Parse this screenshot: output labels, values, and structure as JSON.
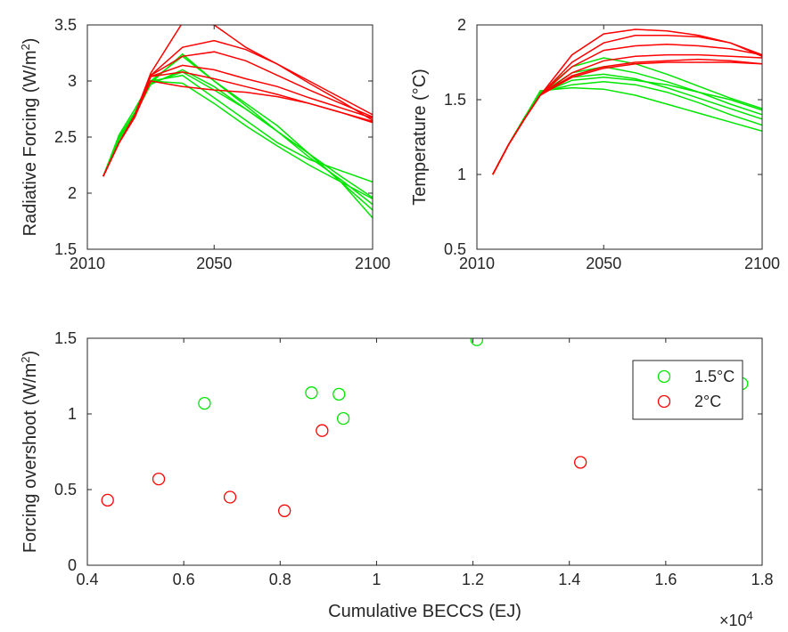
{
  "chart_data": [
    {
      "type": "line",
      "title": "",
      "xlabel": "",
      "ylabel": "Radiative Forcing (W/m²)",
      "ylabel_main": "Radiative Forcing (W/m",
      "ylabel_sup": "2",
      "ylabel_tail": ")",
      "xlim": [
        2010,
        2100
      ],
      "ylim": [
        1.5,
        3.5
      ],
      "xticks": [
        2010,
        2050,
        2100
      ],
      "xtick_labels": [
        "2010",
        "2050",
        "2100"
      ],
      "yticks": [
        1.5,
        2,
        2.5,
        3,
        3.5
      ],
      "ytick_labels": [
        "1.5",
        "2",
        "2.5",
        "3",
        "3.5"
      ],
      "colors": {
        "green": "#00e600",
        "red": "#ff0000"
      },
      "series": [
        {
          "group": "green",
          "x": [
            2015,
            2020,
            2025,
            2030,
            2040,
            2050,
            2060,
            2070,
            2080,
            2090,
            2100
          ],
          "y": [
            2.15,
            2.52,
            2.75,
            3.0,
            3.05,
            2.85,
            2.65,
            2.45,
            2.3,
            2.2,
            2.1
          ]
        },
        {
          "group": "green",
          "x": [
            2015,
            2020,
            2025,
            2030,
            2040,
            2050,
            2060,
            2070,
            2080,
            2090,
            2100
          ],
          "y": [
            2.15,
            2.48,
            2.7,
            2.97,
            3.1,
            2.95,
            2.75,
            2.55,
            2.35,
            2.1,
            1.78
          ]
        },
        {
          "group": "green",
          "x": [
            2015,
            2020,
            2025,
            2030,
            2040,
            2050,
            2060,
            2070,
            2080,
            2090,
            2100
          ],
          "y": [
            2.15,
            2.5,
            2.72,
            3.0,
            3.22,
            3.0,
            2.8,
            2.6,
            2.35,
            2.1,
            1.85
          ]
        },
        {
          "group": "green",
          "x": [
            2015,
            2020,
            2025,
            2030,
            2040,
            2050,
            2060,
            2070,
            2080,
            2090,
            2100
          ],
          "y": [
            2.15,
            2.48,
            2.7,
            2.98,
            3.24,
            3.0,
            2.78,
            2.55,
            2.32,
            2.12,
            1.9
          ]
        },
        {
          "group": "green",
          "x": [
            2015,
            2020,
            2025,
            2030,
            2040,
            2050,
            2060,
            2070,
            2080,
            2090,
            2100
          ],
          "y": [
            2.15,
            2.5,
            2.72,
            2.98,
            3.08,
            2.92,
            2.75,
            2.55,
            2.35,
            2.15,
            1.96
          ]
        },
        {
          "group": "green",
          "x": [
            2015,
            2020,
            2025,
            2030,
            2040,
            2050,
            2060,
            2070,
            2080,
            2090,
            2100
          ],
          "y": [
            2.15,
            2.48,
            2.7,
            3.0,
            2.98,
            2.8,
            2.6,
            2.42,
            2.25,
            2.1,
            1.95
          ]
        },
        {
          "group": "red",
          "x": [
            2015,
            2020,
            2025,
            2030,
            2040,
            2050,
            2060,
            2070,
            2080,
            2090,
            2100
          ],
          "y": [
            2.15,
            2.45,
            2.7,
            3.07,
            3.52,
            3.5,
            3.3,
            3.15,
            2.98,
            2.82,
            2.65
          ]
        },
        {
          "group": "red",
          "x": [
            2015,
            2020,
            2025,
            2030,
            2040,
            2050,
            2060,
            2070,
            2080,
            2090,
            2100
          ],
          "y": [
            2.15,
            2.45,
            2.68,
            3.05,
            3.3,
            3.36,
            3.28,
            3.15,
            3.0,
            2.85,
            2.7
          ]
        },
        {
          "group": "red",
          "x": [
            2015,
            2020,
            2025,
            2030,
            2040,
            2050,
            2060,
            2070,
            2080,
            2090,
            2100
          ],
          "y": [
            2.15,
            2.45,
            2.68,
            3.05,
            3.22,
            3.26,
            3.18,
            3.05,
            2.92,
            2.8,
            2.68
          ]
        },
        {
          "group": "red",
          "x": [
            2015,
            2020,
            2025,
            2030,
            2040,
            2050,
            2060,
            2070,
            2080,
            2090,
            2100
          ],
          "y": [
            2.15,
            2.45,
            2.68,
            3.04,
            3.14,
            3.1,
            3.02,
            2.95,
            2.85,
            2.76,
            2.67
          ]
        },
        {
          "group": "red",
          "x": [
            2015,
            2020,
            2025,
            2030,
            2040,
            2050,
            2060,
            2070,
            2080,
            2090,
            2100
          ],
          "y": [
            2.15,
            2.45,
            2.68,
            3.04,
            3.08,
            3.02,
            2.95,
            2.88,
            2.8,
            2.72,
            2.64
          ]
        },
        {
          "group": "red",
          "x": [
            2015,
            2020,
            2025,
            2030,
            2040,
            2050,
            2060,
            2070,
            2080,
            2090,
            2100
          ],
          "y": [
            2.15,
            2.45,
            2.68,
            3.0,
            2.95,
            2.92,
            2.9,
            2.86,
            2.8,
            2.72,
            2.63
          ]
        }
      ]
    },
    {
      "type": "line",
      "title": "",
      "xlabel": "",
      "ylabel": "Temperature (°C)",
      "xlim": [
        2010,
        2100
      ],
      "ylim": [
        0.5,
        2
      ],
      "xticks": [
        2010,
        2050,
        2100
      ],
      "xtick_labels": [
        "2010",
        "2050",
        "2100"
      ],
      "yticks": [
        0.5,
        1,
        1.5,
        2
      ],
      "ytick_labels": [
        "0.5",
        "1",
        "1.5",
        "2"
      ],
      "colors": {
        "green": "#00e600",
        "red": "#ff0000"
      },
      "series": [
        {
          "group": "green",
          "x": [
            2015,
            2020,
            2025,
            2030,
            2040,
            2050,
            2060,
            2070,
            2080,
            2090,
            2100
          ],
          "y": [
            1.0,
            1.2,
            1.38,
            1.56,
            1.58,
            1.57,
            1.53,
            1.47,
            1.41,
            1.35,
            1.29
          ]
        },
        {
          "group": "green",
          "x": [
            2015,
            2020,
            2025,
            2030,
            2040,
            2050,
            2060,
            2070,
            2080,
            2090,
            2100
          ],
          "y": [
            1.0,
            1.2,
            1.38,
            1.55,
            1.6,
            1.62,
            1.6,
            1.55,
            1.48,
            1.4,
            1.33
          ]
        },
        {
          "group": "green",
          "x": [
            2015,
            2020,
            2025,
            2030,
            2040,
            2050,
            2060,
            2070,
            2080,
            2090,
            2100
          ],
          "y": [
            1.0,
            1.2,
            1.38,
            1.55,
            1.65,
            1.67,
            1.64,
            1.58,
            1.51,
            1.44,
            1.37
          ]
        },
        {
          "group": "green",
          "x": [
            2015,
            2020,
            2025,
            2030,
            2040,
            2050,
            2060,
            2070,
            2080,
            2090,
            2100
          ],
          "y": [
            1.0,
            1.2,
            1.38,
            1.54,
            1.68,
            1.72,
            1.68,
            1.62,
            1.55,
            1.47,
            1.4
          ]
        },
        {
          "group": "green",
          "x": [
            2015,
            2020,
            2025,
            2030,
            2040,
            2050,
            2060,
            2070,
            2080,
            2090,
            2100
          ],
          "y": [
            1.0,
            1.2,
            1.38,
            1.54,
            1.72,
            1.78,
            1.74,
            1.67,
            1.59,
            1.51,
            1.44
          ]
        },
        {
          "group": "green",
          "x": [
            2015,
            2020,
            2025,
            2030,
            2040,
            2050,
            2060,
            2070,
            2080,
            2090,
            2100
          ],
          "y": [
            1.0,
            1.2,
            1.38,
            1.54,
            1.63,
            1.65,
            1.63,
            1.6,
            1.55,
            1.5,
            1.43
          ]
        },
        {
          "group": "red",
          "x": [
            2015,
            2020,
            2025,
            2030,
            2040,
            2050,
            2060,
            2070,
            2080,
            2090,
            2100
          ],
          "y": [
            1.0,
            1.2,
            1.37,
            1.53,
            1.8,
            1.94,
            1.97,
            1.96,
            1.93,
            1.88,
            1.8
          ]
        },
        {
          "group": "red",
          "x": [
            2015,
            2020,
            2025,
            2030,
            2040,
            2050,
            2060,
            2070,
            2080,
            2090,
            2100
          ],
          "y": [
            1.0,
            1.2,
            1.37,
            1.53,
            1.75,
            1.88,
            1.93,
            1.93,
            1.92,
            1.88,
            1.79
          ]
        },
        {
          "group": "red",
          "x": [
            2015,
            2020,
            2025,
            2030,
            2040,
            2050,
            2060,
            2070,
            2080,
            2090,
            2100
          ],
          "y": [
            1.0,
            1.2,
            1.37,
            1.53,
            1.72,
            1.83,
            1.86,
            1.87,
            1.86,
            1.84,
            1.8
          ]
        },
        {
          "group": "red",
          "x": [
            2015,
            2020,
            2025,
            2030,
            2040,
            2050,
            2060,
            2070,
            2080,
            2090,
            2100
          ],
          "y": [
            1.0,
            1.2,
            1.37,
            1.53,
            1.68,
            1.76,
            1.79,
            1.8,
            1.8,
            1.79,
            1.78
          ]
        },
        {
          "group": "red",
          "x": [
            2015,
            2020,
            2025,
            2030,
            2040,
            2050,
            2060,
            2070,
            2080,
            2090,
            2100
          ],
          "y": [
            1.0,
            1.2,
            1.37,
            1.53,
            1.66,
            1.72,
            1.75,
            1.76,
            1.77,
            1.76,
            1.74
          ]
        },
        {
          "group": "red",
          "x": [
            2015,
            2020,
            2025,
            2030,
            2040,
            2050,
            2060,
            2070,
            2080,
            2090,
            2100
          ],
          "y": [
            1.0,
            1.2,
            1.37,
            1.53,
            1.65,
            1.71,
            1.74,
            1.75,
            1.75,
            1.75,
            1.74
          ]
        }
      ]
    },
    {
      "type": "scatter",
      "title": "",
      "xlabel": "Cumulative BECCS (EJ)",
      "ylabel": "Forcing overshoot (W/m²)",
      "ylabel_main": "Forcing overshoot (W/m",
      "ylabel_sup": "2",
      "ylabel_tail": ")",
      "x_exponent_base": "×10",
      "x_exponent_power": "4",
      "xlim": [
        0.4,
        1.8
      ],
      "ylim": [
        0,
        1.5
      ],
      "xticks": [
        0.4,
        0.6,
        0.8,
        1,
        1.2,
        1.4,
        1.6,
        1.8
      ],
      "xtick_labels": [
        "0.4",
        "0.6",
        "0.8",
        "1",
        "1.2",
        "1.4",
        "1.6",
        "1.8"
      ],
      "yticks": [
        0,
        0.5,
        1,
        1.5
      ],
      "ytick_labels": [
        "0",
        "0.5",
        "1",
        "1.5"
      ],
      "legend_position": "top-right",
      "series": [
        {
          "name": "1.5°C",
          "color": "#00e600",
          "x": [
            0.643,
            0.865,
            0.922,
            0.931,
            1.208,
            1.758
          ],
          "y": [
            1.07,
            1.14,
            1.13,
            0.97,
            1.49,
            1.2
          ]
        },
        {
          "name": "2°C",
          "color": "#ff0000",
          "x": [
            0.442,
            0.548,
            0.696,
            0.809,
            0.887,
            1.423
          ],
          "y": [
            0.43,
            0.57,
            0.45,
            0.36,
            0.89,
            0.68
          ]
        }
      ]
    }
  ]
}
